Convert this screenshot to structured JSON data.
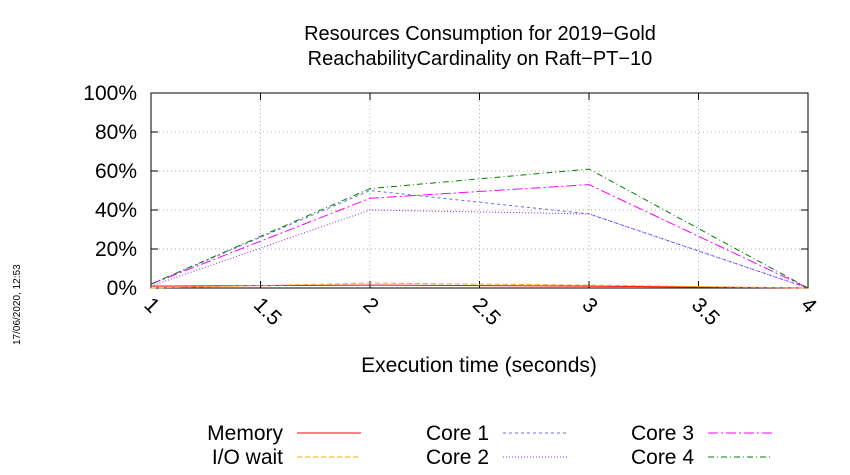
{
  "timestamp": "17/06/2020, 12:53",
  "chart_data": {
    "type": "line",
    "title": [
      "Resources Consumption for 2019−Gold",
      "ReachabilityCardinality on Raft−PT−10"
    ],
    "xlabel": "Execution time (seconds)",
    "ylabel": "",
    "xlim": [
      1,
      4
    ],
    "ylim": [
      0,
      100
    ],
    "x_ticks": [
      1,
      1.5,
      2,
      2.5,
      3,
      3.5,
      4
    ],
    "x_tick_labels": [
      "1",
      "1.5",
      "2",
      "2.5",
      "3",
      "3.5",
      "4"
    ],
    "y_ticks": [
      0,
      20,
      40,
      60,
      80,
      100
    ],
    "y_tick_labels": [
      "0%",
      "20%",
      "40%",
      "60%",
      "80%",
      "100%"
    ],
    "grid": true,
    "legend_placement": "bottom",
    "x": [
      1,
      2,
      3,
      4
    ],
    "series": [
      {
        "name": "Memory",
        "color": "#ff0000",
        "dash": "none",
        "values": [
          1,
          1.5,
          1,
          0
        ]
      },
      {
        "name": "I/O wait",
        "color": "#ffa500",
        "dash": "5,3",
        "values": [
          0,
          2.5,
          1.5,
          0
        ]
      },
      {
        "name": "Core 1",
        "color": "#6a6aff",
        "dash": "3,3",
        "values": [
          2,
          50,
          38,
          0
        ]
      },
      {
        "name": "Core 2",
        "color": "#8a2be2",
        "dash": "1,2",
        "values": [
          1,
          40,
          38,
          0
        ]
      },
      {
        "name": "Core 3",
        "color": "#ff00ff",
        "dash": "10,3,2,3",
        "values": [
          2,
          46,
          53,
          0
        ]
      },
      {
        "name": "Core 4",
        "color": "#008000",
        "dash": "6,3,1,3",
        "values": [
          2,
          51,
          61,
          0
        ]
      }
    ]
  }
}
